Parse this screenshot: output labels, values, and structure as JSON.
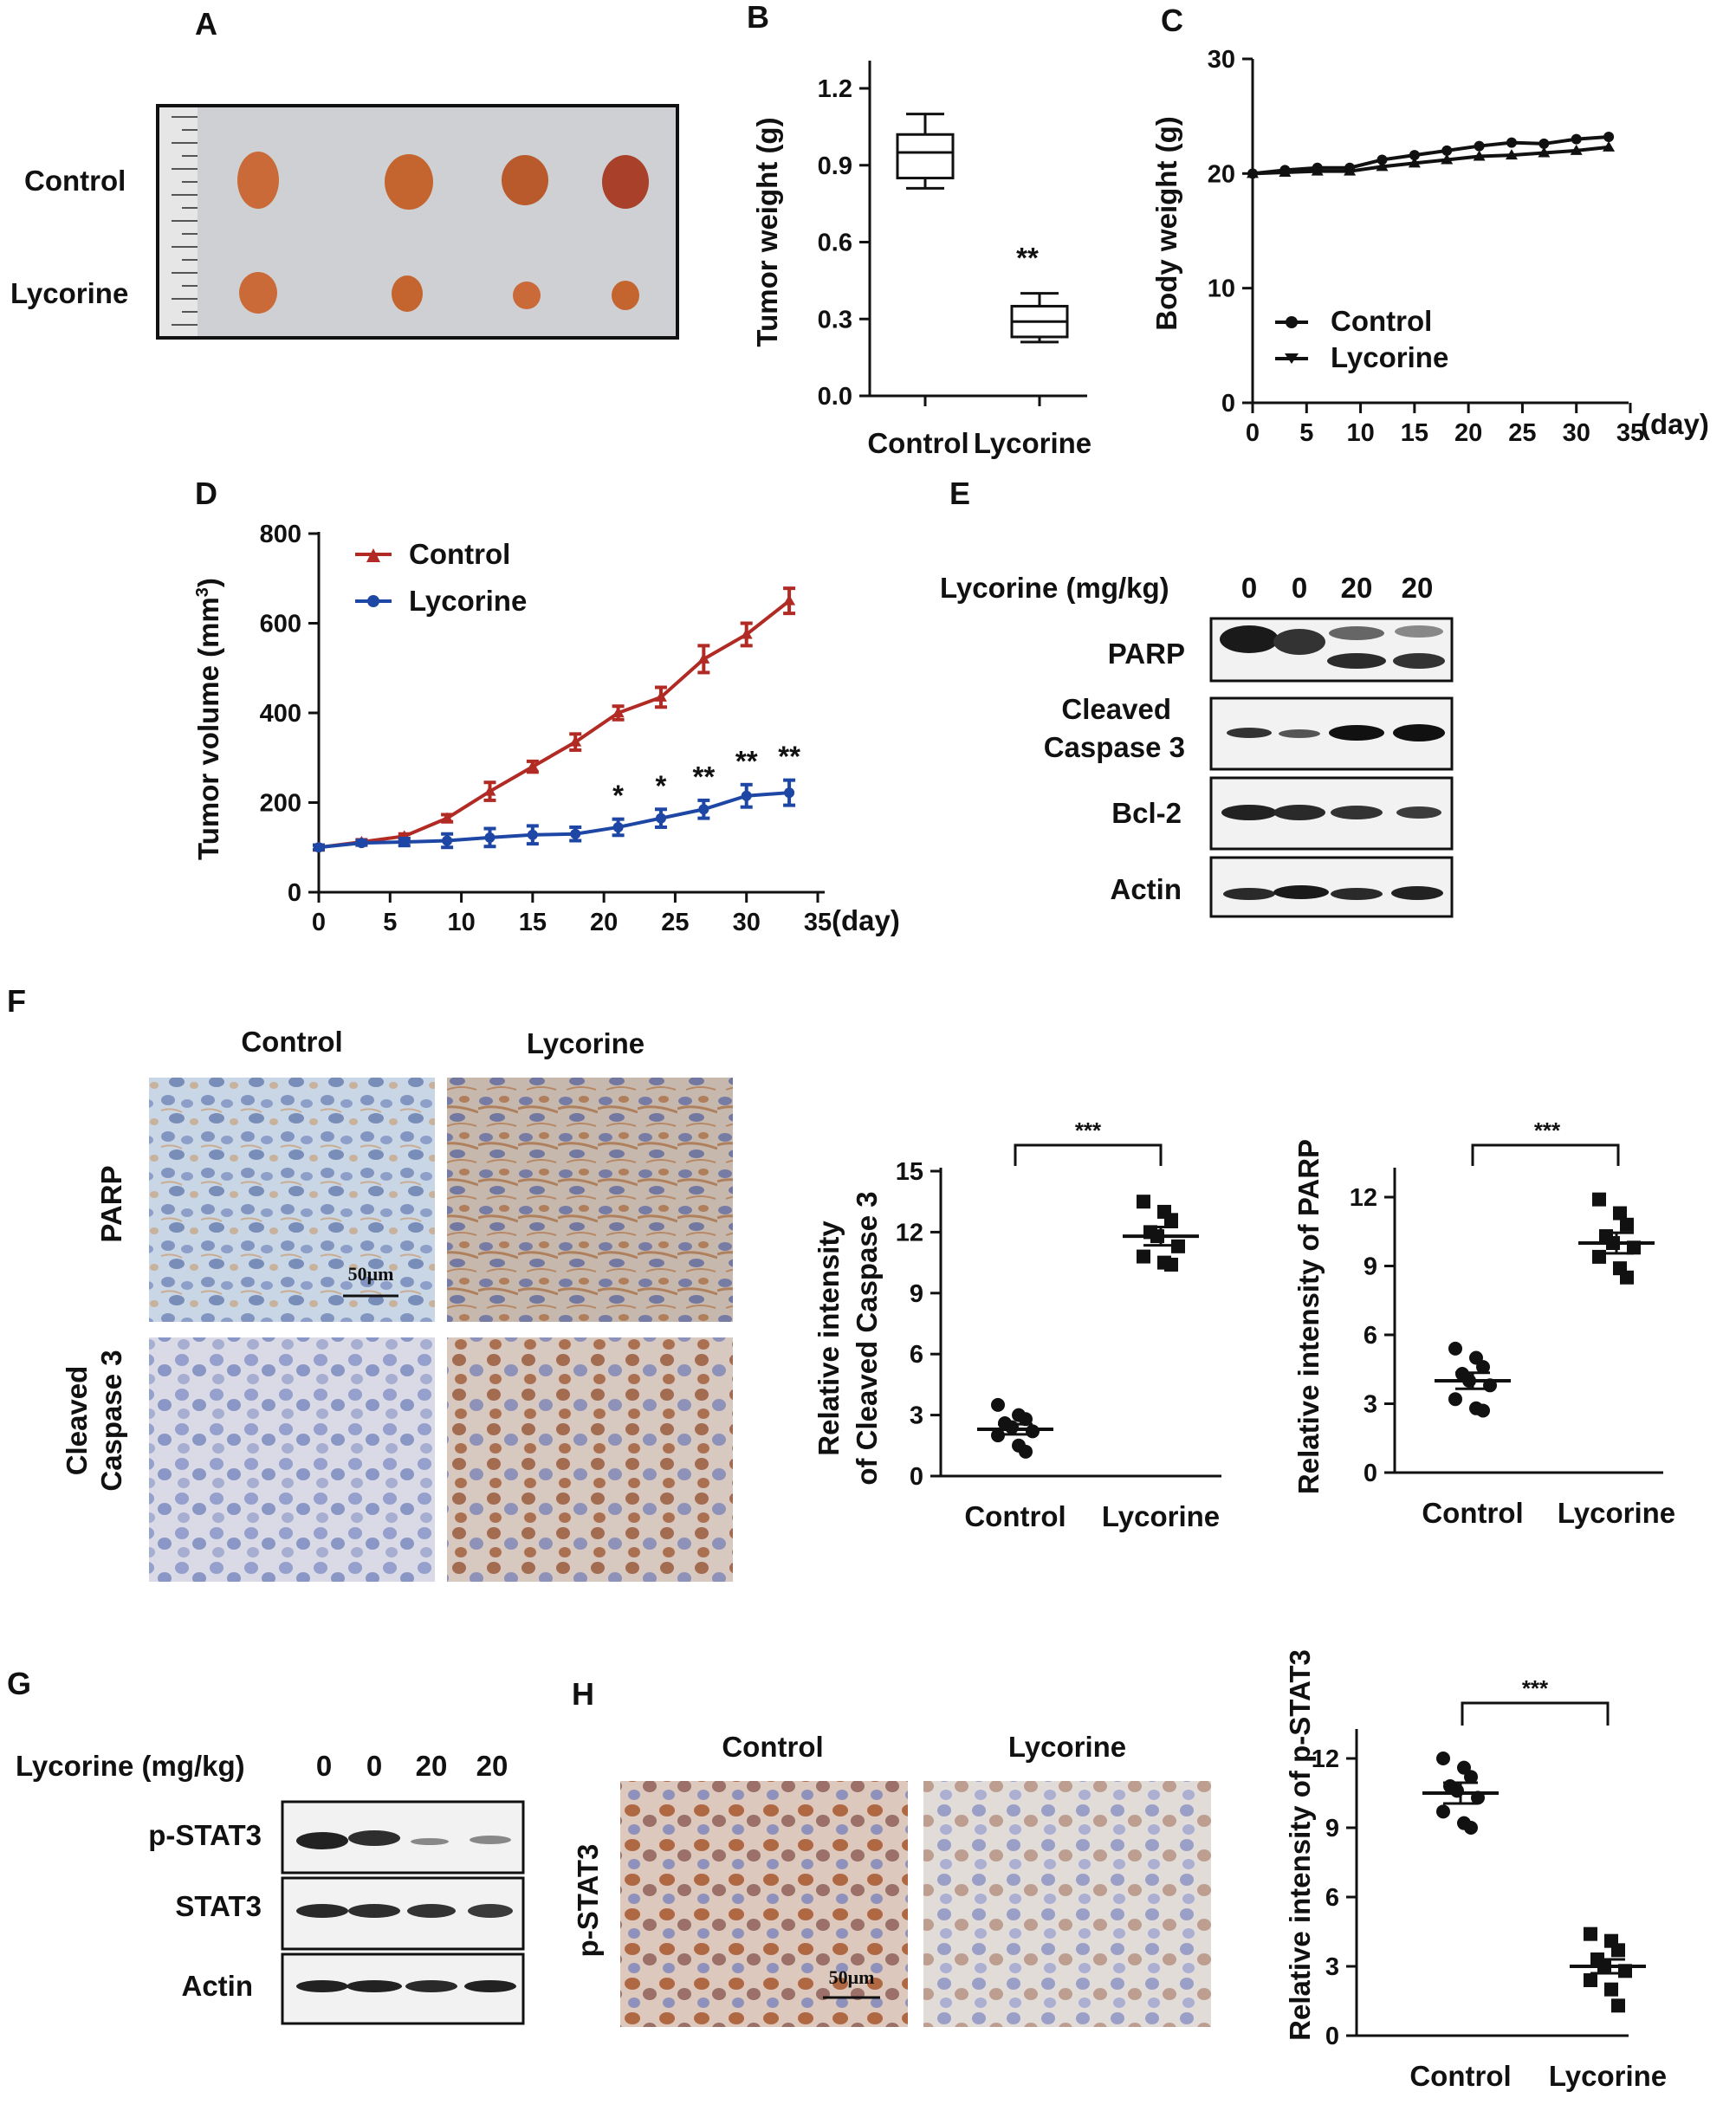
{
  "panel_letters": [
    "A",
    "B",
    "C",
    "D",
    "E",
    "F",
    "G",
    "H"
  ],
  "panelA": {
    "row_labels": [
      "Control",
      "Lycorine"
    ]
  },
  "panelB": {
    "ylabel": "Tumor weight (g)",
    "significance": "**"
  },
  "panelC": {
    "ylabel": "Body weight (g)",
    "x_unit": "(day)"
  },
  "panelD": {
    "ylabel": "Tumor volume (mm",
    "ylabel_sup": "3",
    "ylabel_end": ")",
    "x_unit": "(day)"
  },
  "panelE": {
    "header_label": "Lycorine (mg/kg)",
    "doses": [
      "0",
      "0",
      "20",
      "20"
    ],
    "blots": [
      "PARP",
      "Cleaved",
      "Caspase 3",
      "Bcl-2",
      "Actin"
    ]
  },
  "panelF": {
    "column_labels": [
      "Control",
      "Lycorine"
    ],
    "row_labels": [
      "PARP",
      "Cleaved",
      "Caspase 3"
    ],
    "scale_bar": "50μm",
    "plot1_ylabel_1": "Relative intensity",
    "plot1_ylabel_2": "of Cleaved Caspase 3",
    "plot2_ylabel": "Relative intensity of PARP",
    "sig": "***"
  },
  "panelG": {
    "header_label": "Lycorine (mg/kg)",
    "doses": [
      "0",
      "0",
      "20",
      "20"
    ],
    "blots": [
      "p-STAT3",
      "STAT3",
      "Actin"
    ]
  },
  "panelH": {
    "column_labels": [
      "Control",
      "Lycorine"
    ],
    "row_label": "p-STAT3",
    "scale_bar": "50μm",
    "ylabel": "Relative intensity of p-STAT3",
    "sig": "***"
  },
  "chart_data": [
    {
      "id": "B",
      "type": "box",
      "ylabel": "Tumor weight (g)",
      "categories": [
        "Control",
        "Lycorine"
      ],
      "ylim": [
        0,
        1.2
      ],
      "yticks": [
        "0.0",
        "0.3",
        "0.6",
        "0.9",
        "1.2"
      ],
      "boxes": [
        {
          "name": "Control",
          "min": 0.81,
          "q1": 0.85,
          "median": 0.95,
          "q3": 1.02,
          "max": 1.1
        },
        {
          "name": "Lycorine",
          "min": 0.21,
          "q1": 0.23,
          "median": 0.29,
          "q3": 0.35,
          "max": 0.4
        }
      ],
      "annotations": [
        "**"
      ]
    },
    {
      "id": "C",
      "type": "line",
      "ylabel": "Body weight (g)",
      "xlabel": "(day)",
      "xlim": [
        0,
        35
      ],
      "ylim": [
        0,
        30
      ],
      "xticks": [
        "0",
        "5",
        "10",
        "15",
        "20",
        "25",
        "30",
        "35"
      ],
      "yticks": [
        "0",
        "10",
        "20",
        "30"
      ],
      "x": [
        0,
        3,
        6,
        9,
        12,
        15,
        18,
        21,
        24,
        27,
        30,
        33
      ],
      "series": [
        {
          "name": "Control",
          "values": [
            20,
            20.3,
            20.5,
            20.5,
            21.2,
            21.6,
            22,
            22.4,
            22.7,
            22.6,
            23,
            23.2
          ]
        },
        {
          "name": "Lycorine",
          "values": [
            20,
            20.1,
            20.2,
            20.2,
            20.6,
            20.9,
            21.2,
            21.5,
            21.6,
            21.8,
            22,
            22.3
          ]
        }
      ]
    },
    {
      "id": "D",
      "type": "line",
      "ylabel": "Tumor volume (mm3)",
      "xlabel": "(day)",
      "xlim": [
        0,
        35
      ],
      "ylim": [
        0,
        800
      ],
      "xticks": [
        "0",
        "5",
        "10",
        "15",
        "20",
        "25",
        "30",
        "35"
      ],
      "yticks": [
        "0",
        "200",
        "400",
        "600",
        "800"
      ],
      "x": [
        0,
        3,
        6,
        9,
        12,
        15,
        18,
        21,
        24,
        27,
        30,
        33
      ],
      "series": [
        {
          "name": "Control",
          "values": [
            100,
            112,
            125,
            165,
            225,
            280,
            335,
            400,
            435,
            520,
            575,
            650
          ],
          "errors": [
            5,
            5,
            5,
            8,
            20,
            12,
            18,
            15,
            22,
            30,
            25,
            28
          ]
        },
        {
          "name": "Lycorine",
          "values": [
            100,
            110,
            112,
            115,
            122,
            128,
            130,
            145,
            165,
            185,
            215,
            222
          ],
          "errors": [
            5,
            5,
            8,
            15,
            20,
            20,
            15,
            18,
            20,
            20,
            25,
            28
          ]
        }
      ],
      "annotations": [
        {
          "x": 21,
          "text": "*"
        },
        {
          "x": 24,
          "text": "*"
        },
        {
          "x": 27,
          "text": "**"
        },
        {
          "x": 30,
          "text": "**"
        },
        {
          "x": 33,
          "text": "**"
        }
      ]
    },
    {
      "id": "F1",
      "type": "scatter",
      "ylabel": "Relative intensity of Cleaved Caspase 3",
      "categories": [
        "Control",
        "Lycorine"
      ],
      "ylim": [
        0,
        15
      ],
      "yticks": [
        "0",
        "3",
        "6",
        "9",
        "12",
        "15"
      ],
      "groups": [
        {
          "name": "Control",
          "mean": 2.3,
          "sem": 0.25,
          "points": [
            3.5,
            3.0,
            2.8,
            2.6,
            2.4,
            2.2,
            2.0,
            1.5,
            1.2
          ]
        },
        {
          "name": "Lycorine",
          "mean": 11.8,
          "sem": 0.45,
          "points": [
            13.5,
            13.0,
            12.6,
            12.0,
            11.8,
            11.3,
            10.8,
            10.5,
            10.4
          ]
        }
      ],
      "annotations": [
        "***"
      ]
    },
    {
      "id": "F2",
      "type": "scatter",
      "ylabel": "Relative intensity of PARP",
      "categories": [
        "Control",
        "Lycorine"
      ],
      "ylim": [
        0,
        12
      ],
      "yticks": [
        "0",
        "3",
        "6",
        "9",
        "12"
      ],
      "groups": [
        {
          "name": "Control",
          "mean": 4.0,
          "sem": 0.35,
          "points": [
            5.4,
            5.0,
            4.6,
            4.3,
            4.0,
            3.8,
            3.2,
            2.8,
            2.7
          ]
        },
        {
          "name": "Lycorine",
          "mean": 10.0,
          "sem": 0.45,
          "points": [
            11.9,
            11.3,
            10.8,
            10.3,
            10.0,
            9.8,
            9.4,
            8.9,
            8.5
          ]
        }
      ],
      "annotations": [
        "***"
      ]
    },
    {
      "id": "H",
      "type": "scatter",
      "ylabel": "Relative intensity of p-STAT3",
      "categories": [
        "Control",
        "Lycorine"
      ],
      "ylim": [
        0,
        12
      ],
      "yticks": [
        "0",
        "3",
        "6",
        "9",
        "12"
      ],
      "groups": [
        {
          "name": "Control",
          "mean": 10.5,
          "sem": 0.45,
          "points": [
            12.0,
            11.6,
            11.2,
            10.8,
            10.6,
            10.3,
            9.7,
            9.2,
            9.0
          ]
        },
        {
          "name": "Lycorine",
          "mean": 3.0,
          "sem": 0.3,
          "points": [
            4.4,
            4.1,
            3.7,
            3.3,
            3.0,
            2.8,
            2.4,
            2.0,
            1.3
          ]
        }
      ],
      "annotations": [
        "***"
      ]
    }
  ]
}
